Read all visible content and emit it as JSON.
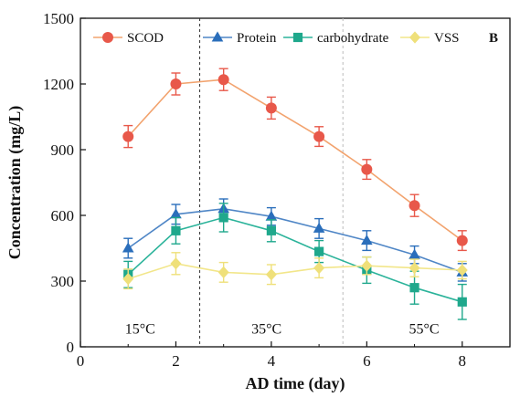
{
  "chart_data": {
    "type": "line",
    "panel_label": "B",
    "xlabel": "AD time (day)",
    "ylabel": "Concentration (mg/L)",
    "xlim": [
      0,
      9
    ],
    "ylim": [
      0,
      1500
    ],
    "xticks": [
      0,
      2,
      4,
      6,
      8
    ],
    "yticks": [
      0,
      300,
      600,
      900,
      1200,
      1500
    ],
    "grid": false,
    "legend_position": "top",
    "x": [
      1,
      2,
      3,
      4,
      5,
      6,
      7,
      8
    ],
    "series": [
      {
        "name": "SCOD",
        "marker": "circle",
        "color": "#E8584A",
        "line_color": "#F2A36E",
        "values": [
          960,
          1200,
          1220,
          1090,
          960,
          810,
          645,
          485
        ],
        "errors": [
          50,
          50,
          50,
          50,
          45,
          45,
          50,
          45
        ]
      },
      {
        "name": "Protein",
        "marker": "triangle",
        "color": "#2A6EBB",
        "line_color": "#4F86C6",
        "values": [
          450,
          605,
          630,
          595,
          540,
          485,
          420,
          340
        ],
        "errors": [
          45,
          45,
          45,
          40,
          45,
          45,
          40,
          40
        ]
      },
      {
        "name": "carbohydrate",
        "marker": "square",
        "color": "#1FA88C",
        "line_color": "#2BB39A",
        "values": [
          330,
          530,
          590,
          530,
          435,
          350,
          270,
          205
        ],
        "errors": [
          60,
          60,
          65,
          50,
          50,
          60,
          75,
          80
        ]
      },
      {
        "name": "VSS",
        "marker": "diamond",
        "color": "#EFE07A",
        "line_color": "#F2E68A",
        "values": [
          310,
          380,
          340,
          330,
          360,
          370,
          360,
          350
        ],
        "errors": [
          45,
          50,
          45,
          45,
          45,
          40,
          40,
          40
        ]
      }
    ],
    "separators": [
      {
        "x": 2.5,
        "style": "dashed",
        "color": "#333333"
      },
      {
        "x": 5.5,
        "style": "dashed",
        "color": "#bbbbbb"
      }
    ],
    "annotations": [
      {
        "text": "15°C",
        "x": 1.25,
        "y": 60
      },
      {
        "text": "35°C",
        "x": 3.9,
        "y": 60
      },
      {
        "text": "55°C",
        "x": 7.2,
        "y": 60
      }
    ]
  }
}
